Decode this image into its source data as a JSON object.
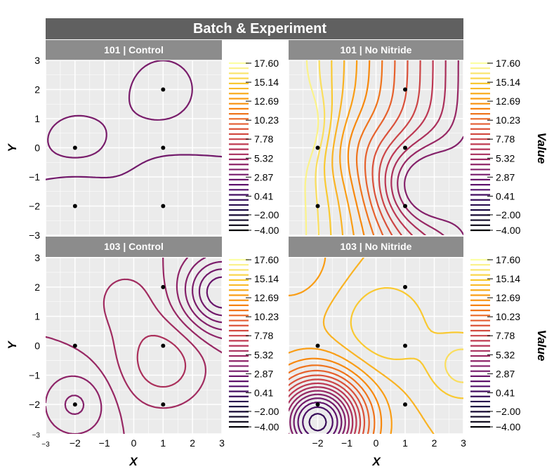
{
  "chart_data": {
    "type": "contour",
    "title": "Batch & Experiment",
    "xlabel": "X",
    "ylabel": "Y",
    "colorbar_label": "Value",
    "xlim": [
      -3,
      3
    ],
    "ylim": [
      -3,
      3
    ],
    "x_ticks": [
      "−3",
      "−2",
      "−1",
      "0",
      "1",
      "2",
      "3"
    ],
    "y_ticks": [
      "3",
      "2",
      "1",
      "0",
      "−1",
      "−2",
      "−3"
    ],
    "colorbar_ticks": [
      "17.60",
      "15.14",
      "12.69",
      "10.23",
      "7.78",
      "5.32",
      "2.87",
      "0.41",
      "−2.00",
      "−4.00"
    ],
    "colorbar_range": [
      -4.0,
      17.6
    ],
    "colormap": "inferno",
    "panels": [
      {
        "title": "101 | Control",
        "points": [
          [
            -2,
            0
          ],
          [
            -2,
            -2
          ],
          [
            1,
            2
          ],
          [
            1,
            0
          ],
          [
            1,
            -2
          ]
        ]
      },
      {
        "title": "101 | No Nitride",
        "points": [
          [
            -2,
            0
          ],
          [
            -2,
            -2
          ],
          [
            1,
            2
          ],
          [
            1,
            0
          ],
          [
            1,
            -2
          ]
        ]
      },
      {
        "title": "103 | Control",
        "points": [
          [
            -2,
            0
          ],
          [
            -2,
            -2
          ],
          [
            1,
            2
          ],
          [
            1,
            0
          ],
          [
            1,
            -2
          ]
        ]
      },
      {
        "title": "103 | No Nitride",
        "points": [
          [
            -2,
            0
          ],
          [
            -2,
            -2
          ],
          [
            1,
            2
          ],
          [
            1,
            0
          ],
          [
            1,
            -2
          ]
        ]
      }
    ]
  },
  "colors": {
    "title_bar": "#606060",
    "strip": "#8c8c8c",
    "panel_bg": "#ebebeb",
    "grid": "#ffffff",
    "point": "#000000"
  }
}
